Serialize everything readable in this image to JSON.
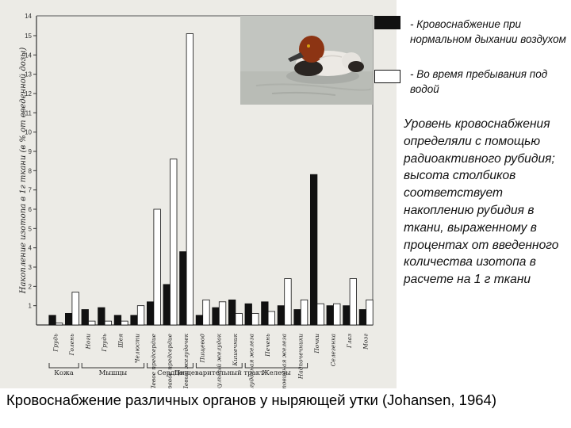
{
  "chart_data": {
    "type": "bar",
    "ylabel": "Накопление изотопа в 1г ткани (в % от введенной дозы)",
    "ylim": [
      0,
      15.5
    ],
    "yticks": [
      1,
      2,
      3,
      4,
      5,
      6,
      7,
      8,
      9,
      10,
      11,
      12,
      13,
      14,
      15
    ],
    "top_tick_label": "14",
    "categories": [
      "Грудь",
      "Голень",
      "Ноги",
      "Грудь",
      "Шея",
      "Челюсти",
      "Левое предсердие",
      "Правое предсердие",
      "Левый желудочек",
      "Пищевод",
      "Мускульный желудок",
      "Кишечник",
      "Поджелудочная железа",
      "Печень",
      "Щитовидная железа",
      "Надпочечники",
      "Почки",
      "Селезенка",
      "Глаз",
      "Мозг"
    ],
    "groups": [
      {
        "label": "Кожа",
        "from": 0,
        "to": 1
      },
      {
        "label": "Мышцы",
        "from": 2,
        "to": 5
      },
      {
        "label": "Сердце",
        "from": 6,
        "to": 8
      },
      {
        "label": "Пищеварительный тракт",
        "from": 9,
        "to": 11
      },
      {
        "label": "Железы",
        "from": 12,
        "to": 15
      }
    ],
    "series": [
      {
        "name": "Кровоснабжение при нормальном дыхании воздухом",
        "values": [
          0.5,
          0.6,
          0.8,
          0.9,
          0.5,
          0.5,
          1.2,
          2.1,
          3.8,
          0.5,
          0.9,
          1.3,
          1.1,
          1.2,
          1.0,
          0.8,
          7.8,
          1.0,
          1.0,
          0.8
        ]
      },
      {
        "name": "Во время пребывания под водой",
        "values": [
          0.1,
          1.7,
          0.2,
          0.2,
          0.2,
          1.0,
          6.0,
          8.6,
          15.1,
          1.3,
          1.2,
          0.6,
          0.6,
          0.7,
          2.4,
          1.3,
          1.1,
          1.1,
          2.4,
          1.3
        ]
      }
    ]
  },
  "legend": {
    "normal": "- Кровоснабжение при нормальном дыхании воздухом",
    "underwater": "- Во время пребывания под водой"
  },
  "note": "Уровень кровоснабжения определяли с помощью радиоактивного рубидия; высота столбиков соответствует накоплению рубидия в ткани, выраженному в процентах от введенного количества изотопа в расчете на 1 г ткани",
  "caption": "Кровоснабжение различных органов у ныряющей утки (Johansen, 1964)",
  "photo": {
    "subject": "duck-photo",
    "water": "#bfc3bd",
    "head": "#8c3413",
    "body": "#ece9e4",
    "dark": "#2a2522"
  },
  "colors": {
    "bar_dark": "#111111",
    "bar_light": "#ffffff",
    "scan_bg": "#ecebe6"
  }
}
